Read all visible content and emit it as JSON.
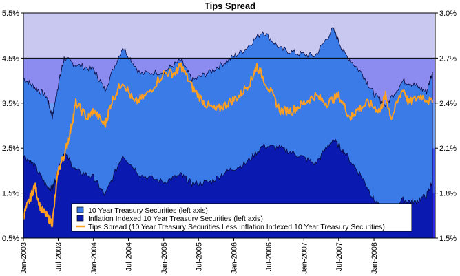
{
  "chart_data": {
    "type": "area",
    "title": "Tips Spread",
    "x_tick_labels": [
      "Jan-2003",
      "Jul-2003",
      "Jan-2004",
      "Jul-2004",
      "Jan-2005",
      "Jul-2005",
      "Jan-2006",
      "Jul-2006",
      "Jan-2007",
      "Jul-2007",
      "Jan-2008"
    ],
    "x_range": [
      "2003-01-01",
      "2008-11-15"
    ],
    "left_axis": {
      "min": 0.5,
      "max": 5.5,
      "ticks": [
        "0.5%",
        "1.5%",
        "2.5%",
        "3.5%",
        "4.5%",
        "5.5%"
      ]
    },
    "right_axis": {
      "min": 1.5,
      "max": 3.0,
      "ticks": [
        "1.5%",
        "1.8%",
        "2.1%",
        "2.4%",
        "2.7%",
        "3.0%"
      ]
    },
    "reference_line_left": 4.5,
    "background_bands": [
      "#c8c8f0",
      "#8c8cf0",
      "#6fa0f8",
      "#3c50f0",
      "#2a2ae6"
    ],
    "series": [
      {
        "name": "10 Year Treasury Securities (left axis)",
        "axis": "left",
        "color": "#3a7be8",
        "x": [
          "2003-01",
          "2003-03",
          "2003-05",
          "2003-06",
          "2003-07",
          "2003-08",
          "2003-10",
          "2004-01",
          "2004-03",
          "2004-06",
          "2004-09",
          "2005-01",
          "2005-04",
          "2005-06",
          "2005-09",
          "2005-12",
          "2006-03",
          "2006-06",
          "2006-09",
          "2006-12",
          "2007-03",
          "2007-06",
          "2007-08",
          "2007-11",
          "2008-01",
          "2008-03",
          "2008-06",
          "2008-08",
          "2008-10",
          "2008-11"
        ],
        "y": [
          4.05,
          3.85,
          3.65,
          3.2,
          3.9,
          4.5,
          4.35,
          4.25,
          3.8,
          4.75,
          4.15,
          4.2,
          4.45,
          4.0,
          4.2,
          4.45,
          4.7,
          5.1,
          4.7,
          4.6,
          4.55,
          5.15,
          4.6,
          4.15,
          3.7,
          3.45,
          4.0,
          3.9,
          3.75,
          4.2
        ]
      },
      {
        "name": "Inflation Indexed 10 Year Treasury Securities (left axis)",
        "axis": "left",
        "color": "#0a1ab0",
        "x": [
          "2003-01",
          "2003-03",
          "2003-05",
          "2003-06",
          "2003-07",
          "2003-08",
          "2003-10",
          "2004-01",
          "2004-03",
          "2004-06",
          "2004-09",
          "2005-01",
          "2005-04",
          "2005-06",
          "2005-09",
          "2005-12",
          "2006-03",
          "2006-06",
          "2006-09",
          "2006-12",
          "2007-03",
          "2007-06",
          "2007-08",
          "2007-11",
          "2008-01",
          "2008-03",
          "2008-06",
          "2008-08",
          "2008-10",
          "2008-11"
        ],
        "y": [
          2.35,
          2.1,
          1.65,
          1.6,
          2.0,
          2.4,
          2.0,
          1.85,
          1.45,
          2.35,
          1.9,
          1.75,
          1.9,
          1.7,
          1.75,
          2.0,
          2.15,
          2.55,
          2.5,
          2.35,
          2.15,
          2.7,
          2.4,
          1.85,
          1.35,
          1.05,
          1.35,
          1.3,
          1.45,
          1.75
        ]
      },
      {
        "name": "Tips Spread (10 Year Treasury Securities Less Inflation Indexed 10 Year Treasury Securities)",
        "axis": "right",
        "color": "#ffa020",
        "x": [
          "2003-01",
          "2003-02",
          "2003-03",
          "2003-04",
          "2003-05",
          "2003-06",
          "2003-07",
          "2003-08",
          "2003-09",
          "2003-10",
          "2003-12",
          "2004-01",
          "2004-03",
          "2004-04",
          "2004-06",
          "2004-08",
          "2004-10",
          "2005-01",
          "2005-03",
          "2005-04",
          "2005-06",
          "2005-08",
          "2005-10",
          "2005-12",
          "2006-02",
          "2006-04",
          "2006-05",
          "2006-07",
          "2006-09",
          "2006-11",
          "2007-01",
          "2007-03",
          "2007-05",
          "2007-07",
          "2007-09",
          "2007-10",
          "2007-12",
          "2008-02",
          "2008-03",
          "2008-04",
          "2008-06",
          "2008-07",
          "2008-09",
          "2008-11"
        ],
        "y": [
          1.65,
          1.75,
          1.85,
          1.7,
          1.65,
          1.6,
          1.95,
          2.05,
          2.2,
          2.4,
          2.3,
          2.35,
          2.25,
          2.4,
          2.55,
          2.4,
          2.45,
          2.6,
          2.6,
          2.65,
          2.5,
          2.4,
          2.35,
          2.4,
          2.45,
          2.55,
          2.65,
          2.5,
          2.35,
          2.35,
          2.4,
          2.45,
          2.4,
          2.45,
          2.3,
          2.35,
          2.4,
          2.35,
          2.45,
          2.3,
          2.5,
          2.4,
          2.45,
          2.4
        ]
      }
    ],
    "legend": {
      "placement": "bottom-center"
    }
  }
}
